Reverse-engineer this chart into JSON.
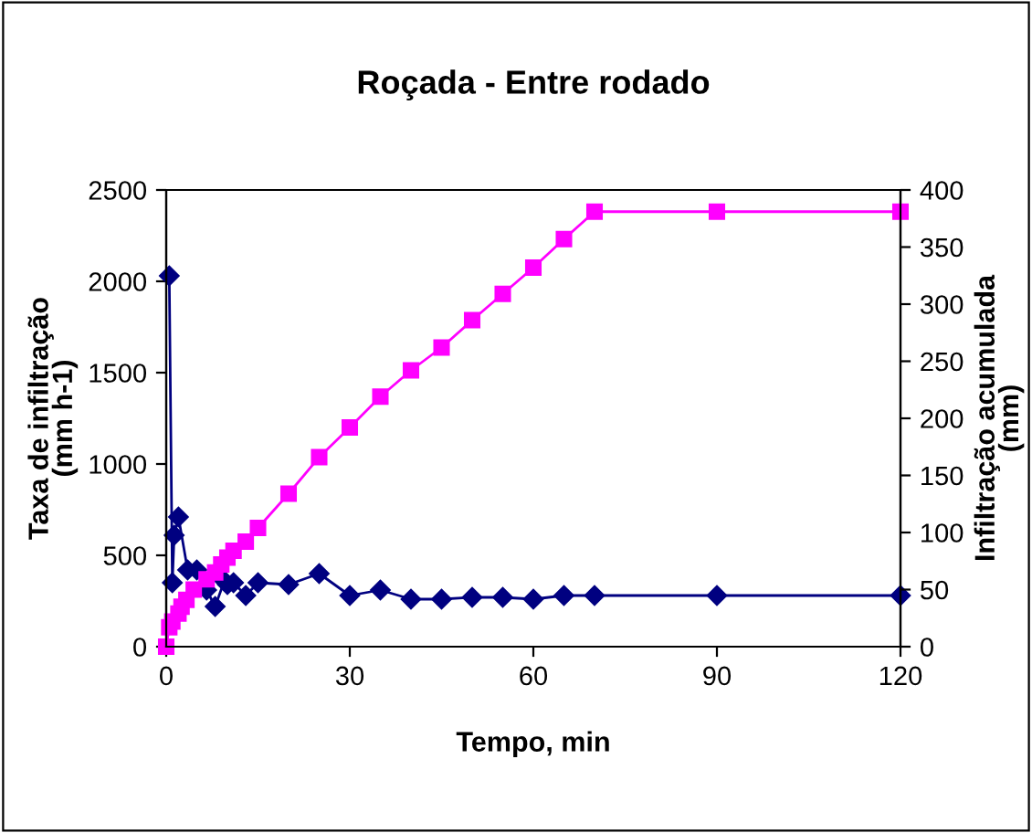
{
  "chart_data": {
    "type": "line",
    "title": "Roçada - Entre rodado",
    "xlabel": "Tempo, min",
    "ylabel": "Taxa de infiltração\n(mm h-1)",
    "y2label": "Infiltração acumulada\n(mm)",
    "xlim": [
      0,
      120
    ],
    "xticks": [
      0,
      30,
      60,
      90,
      120
    ],
    "ylim": [
      0,
      2500
    ],
    "yticks": [
      0,
      500,
      1000,
      1500,
      2000,
      2500
    ],
    "y2lim": [
      0,
      400
    ],
    "y2ticks": [
      0,
      50,
      100,
      150,
      200,
      250,
      300,
      350,
      400
    ],
    "series": [
      {
        "color": "#000080",
        "marker": "diamond",
        "x": [
          0.5,
          1,
          1.3,
          2,
          3.5,
          5,
          6.6,
          8,
          9.5,
          10,
          11,
          13,
          15,
          20,
          25,
          30,
          35,
          40,
          45,
          50,
          55,
          60,
          65,
          70,
          90,
          120
        ],
        "values": [
          2030,
          350,
          610,
          710,
          420,
          420,
          310,
          220,
          360,
          340,
          350,
          280,
          350,
          340,
          400,
          280,
          310,
          260,
          260,
          270,
          270,
          260,
          280,
          280,
          280,
          280
        ]
      },
      {
        "color": "#ff00ff",
        "marker": "square",
        "axis": "y2",
        "x": [
          0,
          0.5,
          1,
          2,
          2.5,
          3.3,
          4.5,
          6.6,
          8,
          9,
          10,
          11,
          13,
          15,
          20,
          25,
          30,
          35,
          40,
          45,
          50,
          55,
          60,
          65,
          70,
          90,
          120
        ],
        "values": [
          0,
          17,
          22,
          29,
          35,
          41,
          50,
          59,
          65,
          72,
          78,
          84,
          92,
          104,
          134,
          166,
          192,
          219,
          242,
          262,
          286,
          309,
          332,
          357,
          381,
          381,
          381
        ]
      }
    ]
  }
}
